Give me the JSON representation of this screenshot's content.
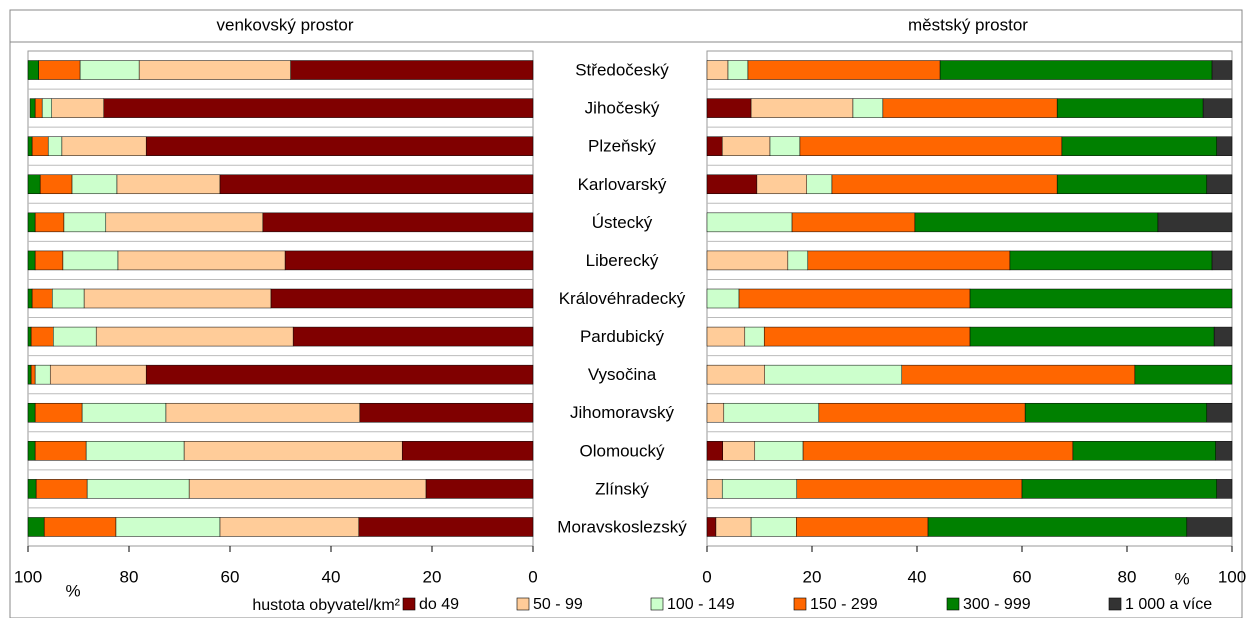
{
  "legend_title": "hustota obyvatel/km²",
  "chart_data": [
    {
      "type": "stacked-barh",
      "title": "venkovský prostor",
      "xlabel": "%",
      "categories": [
        "Středočeský",
        "Jihočeský",
        "Plzeňský",
        "Karlovarský",
        "Ústecký",
        "Liberecký",
        "Královéhradecký",
        "Pardubický",
        "Vysočina",
        "Jihomoravský",
        "Olomoucký",
        "Zlínský",
        "Moravskoslezský"
      ],
      "xlim": [
        100,
        0
      ],
      "xticks": [
        100,
        80,
        60,
        40,
        20,
        0
      ],
      "series": [
        {
          "name": "do 49",
          "color": "#800000",
          "values": [
            48,
            85,
            76.6,
            62,
            53.5,
            49.1,
            51.9,
            47.5,
            76.6,
            34.3,
            25.9,
            21.2,
            34.5
          ]
        },
        {
          "name": "50 - 99",
          "color": "#ffcc99",
          "values": [
            30,
            10.3,
            16.7,
            20.4,
            31.1,
            33.1,
            37,
            39,
            19,
            38.4,
            43.2,
            46.9,
            27.5
          ]
        },
        {
          "name": "100 - 149",
          "color": "#ccffcc",
          "values": [
            11.7,
            1.9,
            2.7,
            8.9,
            8.3,
            10.9,
            6.3,
            8.5,
            3,
            16.6,
            19.4,
            20.2,
            20.6
          ]
        },
        {
          "name": "150 - 299",
          "color": "#ff6600",
          "values": [
            8.2,
            1.4,
            3.2,
            6.3,
            5.7,
            5.5,
            4,
            4.4,
            0.8,
            9.3,
            10.1,
            10.1,
            14.2
          ]
        },
        {
          "name": "300 - 999",
          "color": "#008000",
          "values": [
            2.1,
            1,
            0.8,
            2.4,
            1.4,
            1.4,
            0.8,
            0.6,
            0.6,
            1.4,
            1.4,
            1.6,
            3.2
          ]
        },
        {
          "name": "1 000 a více",
          "color": "#333333",
          "values": [
            0,
            0,
            0,
            0,
            0,
            0,
            0,
            0,
            0,
            0,
            0,
            0,
            0
          ]
        }
      ]
    },
    {
      "type": "stacked-barh",
      "title": "městský prostor",
      "xlabel": "%",
      "xlim": [
        0,
        100
      ],
      "xticks": [
        0,
        20,
        40,
        60,
        80,
        100
      ],
      "series": [
        {
          "values": [
            0,
            8.4,
            2.9,
            9.5,
            0,
            0,
            0,
            0,
            0,
            0,
            3,
            0,
            1.7
          ]
        },
        {
          "values": [
            4,
            19.4,
            9.1,
            9.5,
            0,
            15.4,
            0,
            7.2,
            11,
            3.2,
            6.1,
            2.9,
            6.7
          ]
        },
        {
          "values": [
            3.8,
            5.7,
            5.7,
            4.8,
            16.2,
            3.8,
            6.1,
            3.7,
            26.1,
            18.1,
            9.2,
            14.2,
            8.6
          ]
        },
        {
          "values": [
            36.6,
            33.2,
            49.9,
            42.9,
            23.4,
            38.5,
            44,
            39.2,
            44.4,
            39.3,
            51.4,
            42.9,
            25.1
          ]
        },
        {
          "values": [
            51.8,
            27.8,
            29.5,
            28.5,
            46.3,
            38.5,
            49.9,
            46.5,
            18.5,
            34.6,
            27.2,
            37.1,
            49.3
          ]
        },
        {
          "values": [
            3.8,
            5.5,
            2.9,
            4.8,
            14.1,
            3.8,
            0,
            3.4,
            0,
            4.8,
            3.1,
            2.9,
            8.6
          ]
        }
      ]
    }
  ]
}
